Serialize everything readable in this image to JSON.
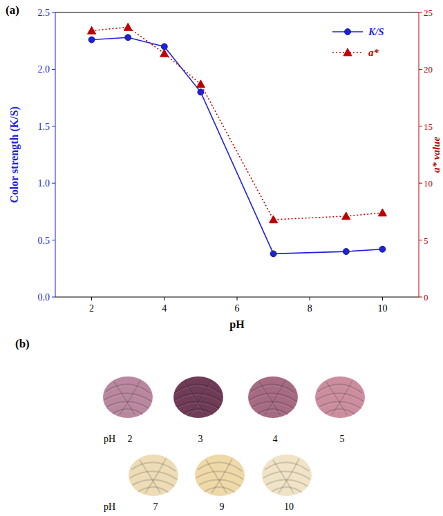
{
  "chart_data": {
    "type": "line",
    "title": "(a)",
    "x_label": "pH",
    "y_label": "Color strength (K/S)",
    "y2_label": "a* value",
    "x": [
      2,
      3,
      4,
      5,
      7,
      9,
      10
    ],
    "xlim": [
      1,
      11
    ],
    "xticks": [
      2,
      4,
      6,
      8,
      10
    ],
    "ylim": [
      0,
      2.5
    ],
    "yticks": [
      {
        "value": 0,
        "label": "0.0"
      },
      0.5,
      {
        "value": 1,
        "label": "1.0"
      },
      1.5,
      {
        "value": 2,
        "label": "2.0"
      },
      2.5
    ],
    "y2lim": [
      0,
      25
    ],
    "y2ticks": [
      0,
      5,
      10,
      15,
      20,
      25
    ],
    "legend": "top-right",
    "series": [
      {
        "name": "K/S",
        "color": "#1f1fe0",
        "marker": "circle",
        "line_style": "solid",
        "values": [
          2.26,
          2.28,
          2.2,
          1.8,
          0.38,
          0.4,
          0.42
        ]
      },
      {
        "name": "a*",
        "color": "#c00000",
        "marker": "triangle",
        "line_style": "dotted",
        "axis": "y2",
        "values": [
          23.4,
          23.7,
          21.4,
          18.7,
          6.8,
          7.1,
          7.4
        ]
      }
    ]
  },
  "panel_b": {
    "label": "(b)",
    "row_label": "pH",
    "rows": [
      [
        {
          "pH": "2",
          "color": "#b9879f"
        },
        {
          "pH": "3",
          "color": "#6f3b57"
        },
        {
          "pH": "4",
          "color": "#a66b82"
        },
        {
          "pH": "5",
          "color": "#cc8e9f"
        }
      ],
      [
        {
          "pH": "7",
          "color": "#eddcb6"
        },
        {
          "pH": "9",
          "color": "#efd9a9"
        },
        {
          "pH": "10",
          "color": "#f0e3c6"
        }
      ]
    ]
  }
}
